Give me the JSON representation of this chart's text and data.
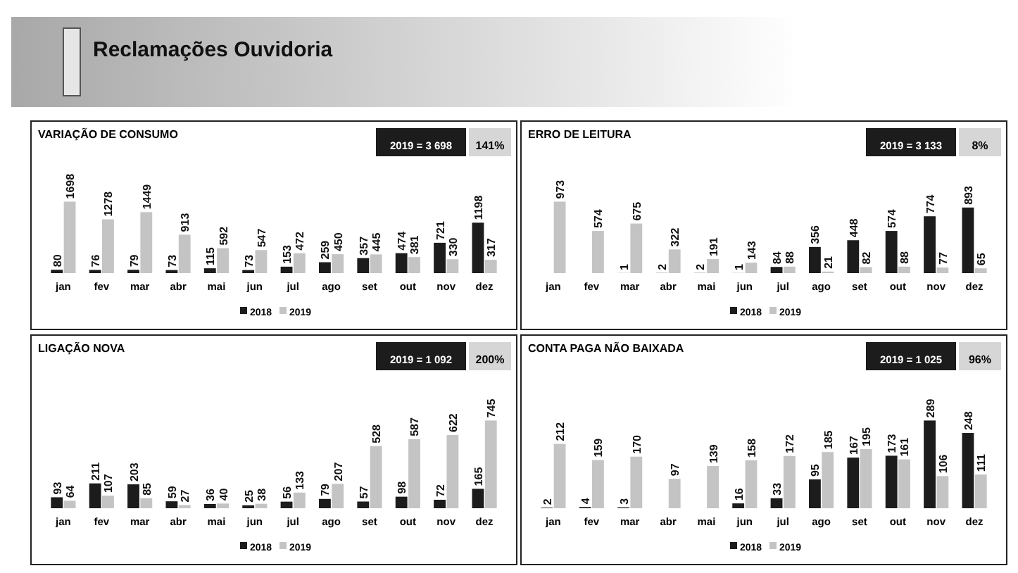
{
  "chart_data": [
    {
      "type": "bar",
      "title": "VARIAÇÃO DE CONSUMO",
      "categories": [
        "jan",
        "fev",
        "mar",
        "abr",
        "mai",
        "jun",
        "jul",
        "ago",
        "set",
        "out",
        "nov",
        "dez"
      ],
      "series": [
        {
          "name": "2018",
          "color": "#1c1c1c",
          "values": [
            80,
            76,
            79,
            73,
            115,
            73,
            153,
            259,
            357,
            474,
            721,
            1198
          ]
        },
        {
          "name": "2019",
          "color": "#c4c4c4",
          "values": [
            1698,
            1278,
            1449,
            913,
            592,
            547,
            472,
            450,
            445,
            381,
            330,
            317
          ]
        }
      ],
      "data_labels": true,
      "legend": "bottom",
      "annotations": [
        "Reclamações Ouvidoria",
        "2019 = 3 698",
        "141%"
      ]
    },
    {
      "type": "bar",
      "title": "ERRO DE LEITURA",
      "categories": [
        "jan",
        "fev",
        "mar",
        "abr",
        "mai",
        "jun",
        "jul",
        "ago",
        "set",
        "out",
        "nov",
        "dez"
      ],
      "series": [
        {
          "name": "2018",
          "color": "#1c1c1c",
          "values": [
            null,
            null,
            1,
            2,
            2,
            1,
            84,
            356,
            448,
            574,
            774,
            893
          ]
        },
        {
          "name": "2019",
          "color": "#c4c4c4",
          "values": [
            973,
            574,
            675,
            322,
            191,
            143,
            88,
            21,
            82,
            88,
            77,
            65
          ]
        }
      ],
      "data_labels": true,
      "legend": "bottom",
      "annotations": [
        "2019 = 3 133",
        "8%"
      ]
    },
    {
      "type": "bar",
      "title": "LIGAÇÃO NOVA",
      "categories": [
        "jan",
        "fev",
        "mar",
        "abr",
        "mai",
        "jun",
        "jul",
        "ago",
        "set",
        "out",
        "nov",
        "dez"
      ],
      "series": [
        {
          "name": "2018",
          "color": "#1c1c1c",
          "values": [
            93,
            211,
            203,
            59,
            36,
            25,
            56,
            79,
            57,
            98,
            72,
            165
          ]
        },
        {
          "name": "2019",
          "color": "#c4c4c4",
          "values": [
            64,
            107,
            85,
            27,
            40,
            38,
            133,
            207,
            528,
            587,
            622,
            745
          ]
        }
      ],
      "data_labels": true,
      "legend": "bottom",
      "annotations": [
        "2019 = 1 092",
        "200%"
      ]
    },
    {
      "type": "bar",
      "title": "CONTA PAGA NÃO BAIXADA",
      "categories": [
        "jan",
        "fev",
        "mar",
        "abr",
        "mai",
        "jun",
        "jul",
        "ago",
        "set",
        "out",
        "nov",
        "dez"
      ],
      "series": [
        {
          "name": "2018",
          "color": "#1c1c1c",
          "values": [
            2,
            4,
            3,
            null,
            null,
            16,
            33,
            95,
            167,
            173,
            289,
            248
          ]
        },
        {
          "name": "2019",
          "color": "#c4c4c4",
          "values": [
            212,
            159,
            170,
            97,
            139,
            158,
            172,
            185,
            195,
            161,
            106,
            111
          ]
        }
      ],
      "data_labels": true,
      "legend": "bottom",
      "annotations": [
        "2019 = 1 025",
        "96%"
      ]
    }
  ]
}
